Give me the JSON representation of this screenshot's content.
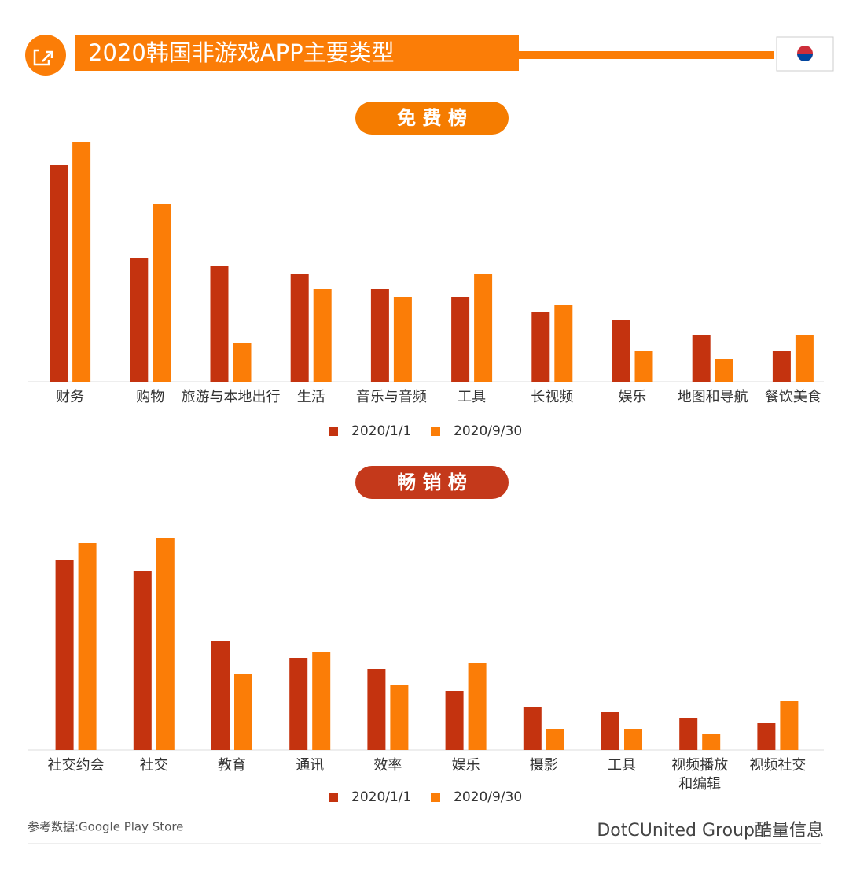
{
  "title": "2020韩国非游戏APP主要类型",
  "source": "参考数据:Google Play Store",
  "brand": "DotCUnited Group酷量信息",
  "chart_data": [
    {
      "type": "bar",
      "title": "免 费 榜",
      "title_color": "#f57c00",
      "categories": [
        "财务",
        "购物",
        "旅游与本地出行",
        "生活",
        "音乐与音频",
        "工具",
        "长视频",
        "娱乐",
        "地图和导航",
        "餐饮美食"
      ],
      "series": [
        {
          "name": "2020/1/1",
          "color": "#c4330f",
          "values": [
            275,
            157,
            147,
            137,
            118,
            108,
            88,
            78,
            59,
            39
          ]
        },
        {
          "name": "2020/9/30",
          "color": "#fb7d07",
          "values": [
            305,
            226,
            49,
            118,
            108,
            137,
            98,
            39,
            29,
            59
          ]
        }
      ]
    },
    {
      "type": "bar",
      "title": "畅 销 榜",
      "title_color": "#c4391b",
      "categories": [
        "社交约会",
        "社交",
        "教育",
        "通讯",
        "效率",
        "娱乐",
        "摄影",
        "工具",
        "视频播放\n和编辑",
        "视频社交"
      ],
      "series": [
        {
          "name": "2020/1/1",
          "color": "#c4330f",
          "values": [
            242,
            228,
            138,
            117,
            103,
            75,
            55,
            48,
            41,
            34
          ]
        },
        {
          "name": "2020/9/30",
          "color": "#fb7d07",
          "values": [
            263,
            270,
            96,
            124,
            82,
            110,
            27,
            27,
            20,
            62
          ]
        }
      ]
    }
  ]
}
